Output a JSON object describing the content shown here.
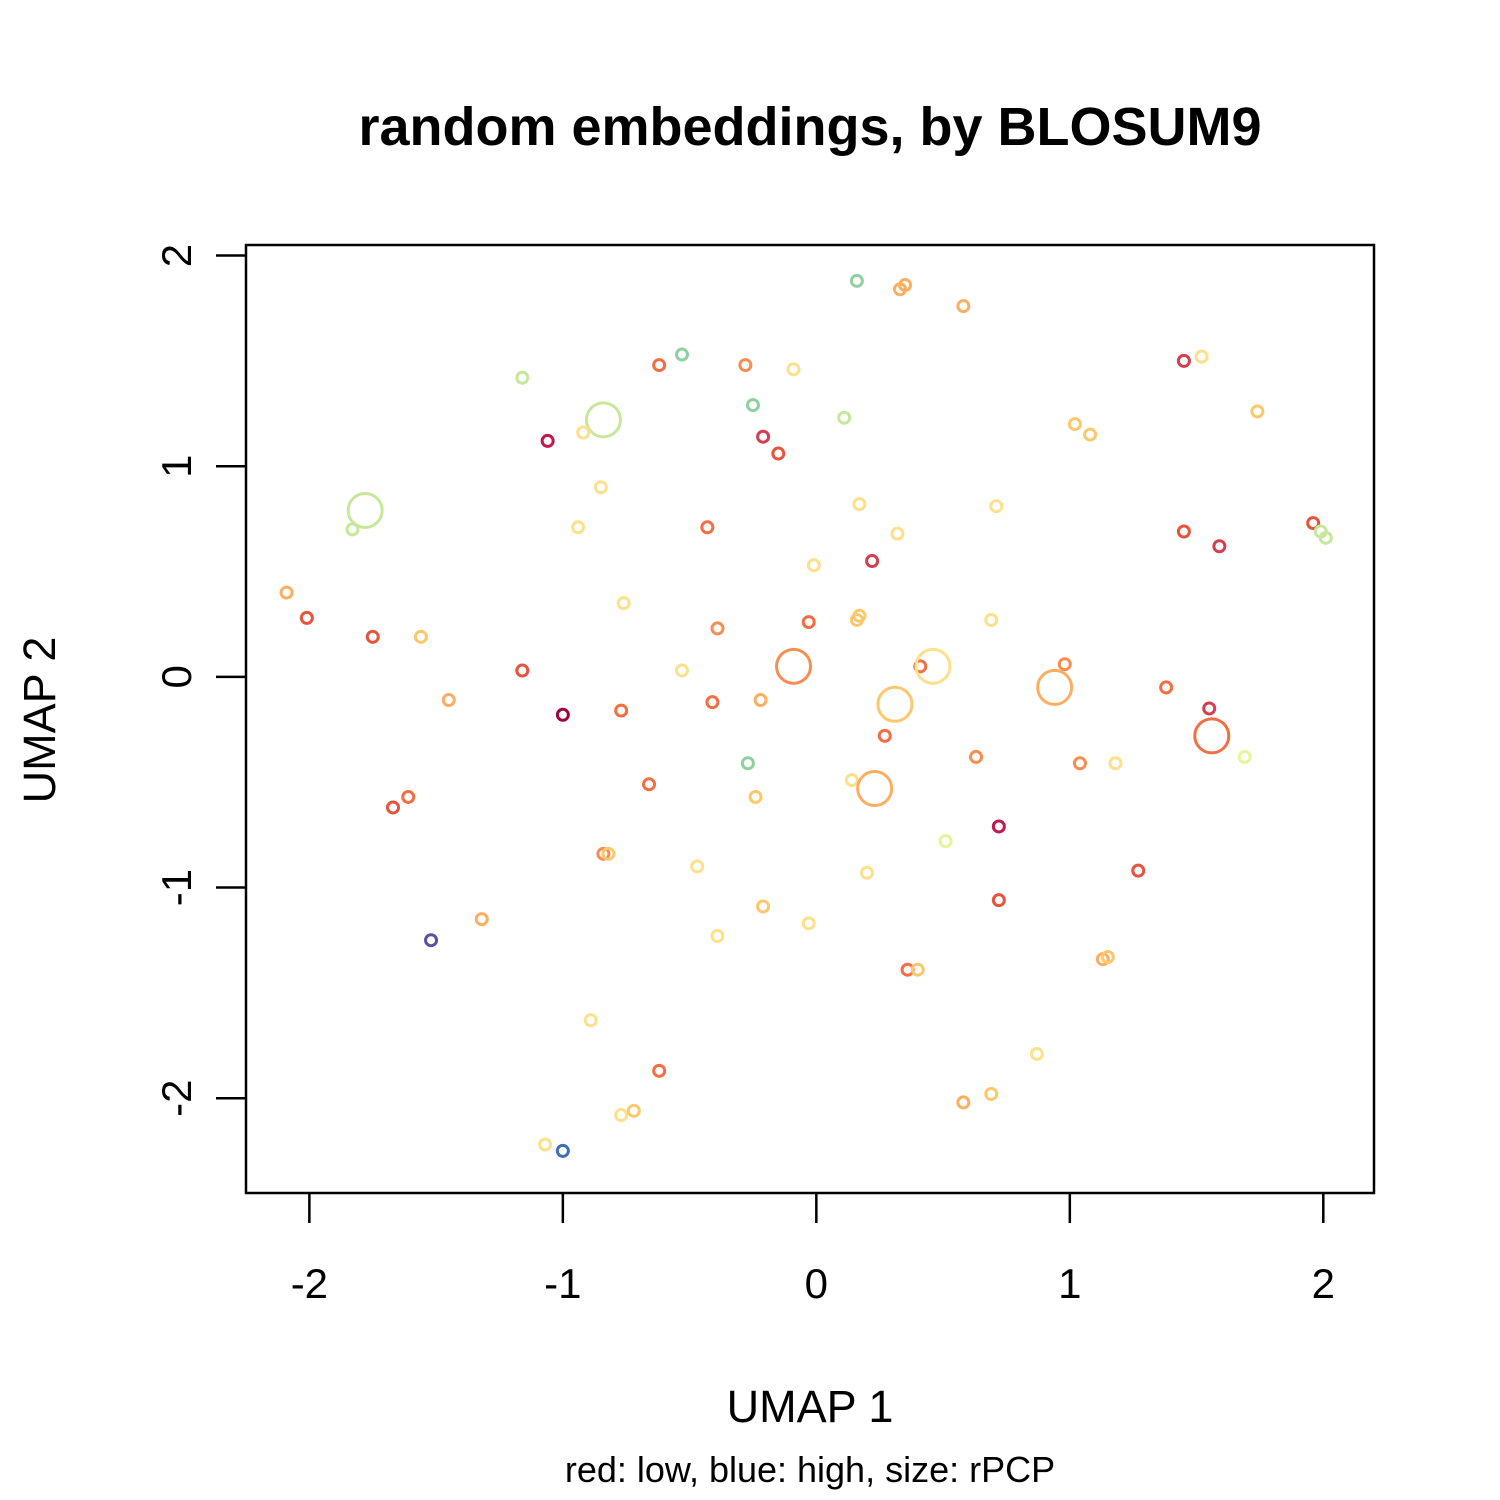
{
  "chart_data": {
    "type": "scatter",
    "title": "random embeddings, by BLOSUM9",
    "xlabel": "UMAP 1",
    "ylabel": "UMAP 2",
    "subtitle": "red: low, blue: high, size: rPCP",
    "xlim": [
      -2.25,
      2.2
    ],
    "ylim": [
      -2.45,
      2.05
    ],
    "xticks": [
      -2,
      -1,
      0,
      1,
      2
    ],
    "yticks": [
      -2,
      -1,
      0,
      1,
      2
    ],
    "points": [
      {
        "x": 0.16,
        "y": 1.88,
        "c": "#8fd19e",
        "s": 1
      },
      {
        "x": 0.33,
        "y": 1.84,
        "c": "#fdae61",
        "s": 1
      },
      {
        "x": 0.35,
        "y": 1.86,
        "c": "#fdae61",
        "s": 1
      },
      {
        "x": 0.58,
        "y": 1.76,
        "c": "#fdae61",
        "s": 1
      },
      {
        "x": -0.53,
        "y": 1.53,
        "c": "#8fd19e",
        "s": 1
      },
      {
        "x": -0.62,
        "y": 1.48,
        "c": "#f46d43",
        "s": 1
      },
      {
        "x": -0.28,
        "y": 1.48,
        "c": "#f88d52",
        "s": 1
      },
      {
        "x": -0.09,
        "y": 1.46,
        "c": "#fee08b",
        "s": 1
      },
      {
        "x": -1.16,
        "y": 1.42,
        "c": "#c7e89b",
        "s": 1
      },
      {
        "x": -0.25,
        "y": 1.29,
        "c": "#8fd19e",
        "s": 1
      },
      {
        "x": -0.84,
        "y": 1.22,
        "c": "#c7e89b",
        "s": 3
      },
      {
        "x": 0.11,
        "y": 1.23,
        "c": "#c7e89b",
        "s": 1
      },
      {
        "x": -0.92,
        "y": 1.16,
        "c": "#fee08b",
        "s": 1
      },
      {
        "x": -1.06,
        "y": 1.12,
        "c": "#c2184c",
        "s": 1
      },
      {
        "x": -0.21,
        "y": 1.14,
        "c": "#d53e4f",
        "s": 1
      },
      {
        "x": -0.15,
        "y": 1.06,
        "c": "#e8533d",
        "s": 1
      },
      {
        "x": 1.45,
        "y": 1.5,
        "c": "#d53e4f",
        "s": 1
      },
      {
        "x": 1.52,
        "y": 1.52,
        "c": "#fee08b",
        "s": 1
      },
      {
        "x": 1.74,
        "y": 1.26,
        "c": "#fdc86c",
        "s": 1
      },
      {
        "x": 1.02,
        "y": 1.2,
        "c": "#fdc86c",
        "s": 1
      },
      {
        "x": 1.08,
        "y": 1.15,
        "c": "#fdc86c",
        "s": 1
      },
      {
        "x": -1.78,
        "y": 0.79,
        "c": "#c7e89b",
        "s": 3
      },
      {
        "x": -1.83,
        "y": 0.7,
        "c": "#c7e89b",
        "s": 1
      },
      {
        "x": -0.85,
        "y": 0.9,
        "c": "#fee08b",
        "s": 1
      },
      {
        "x": -0.94,
        "y": 0.71,
        "c": "#fee08b",
        "s": 1
      },
      {
        "x": -0.43,
        "y": 0.71,
        "c": "#f46d43",
        "s": 1
      },
      {
        "x": 0.17,
        "y": 0.82,
        "c": "#fee08b",
        "s": 1
      },
      {
        "x": 0.71,
        "y": 0.81,
        "c": "#fee08b",
        "s": 1
      },
      {
        "x": 0.32,
        "y": 0.68,
        "c": "#fee08b",
        "s": 1
      },
      {
        "x": -0.01,
        "y": 0.53,
        "c": "#fee08b",
        "s": 1
      },
      {
        "x": 0.22,
        "y": 0.55,
        "c": "#d53e4f",
        "s": 1
      },
      {
        "x": 1.45,
        "y": 0.69,
        "c": "#e8533d",
        "s": 1
      },
      {
        "x": 1.59,
        "y": 0.62,
        "c": "#d53e4f",
        "s": 1
      },
      {
        "x": 1.96,
        "y": 0.73,
        "c": "#e8533d",
        "s": 1
      },
      {
        "x": 1.99,
        "y": 0.69,
        "c": "#c7e89b",
        "s": 1
      },
      {
        "x": 2.01,
        "y": 0.66,
        "c": "#c7e89b",
        "s": 1
      },
      {
        "x": -2.09,
        "y": 0.4,
        "c": "#fdae61",
        "s": 1
      },
      {
        "x": -2.01,
        "y": 0.28,
        "c": "#e8533d",
        "s": 1
      },
      {
        "x": -1.75,
        "y": 0.19,
        "c": "#e8533d",
        "s": 1
      },
      {
        "x": -1.56,
        "y": 0.19,
        "c": "#fdc86c",
        "s": 1
      },
      {
        "x": -0.76,
        "y": 0.35,
        "c": "#fee08b",
        "s": 1
      },
      {
        "x": -0.39,
        "y": 0.23,
        "c": "#f88d52",
        "s": 1
      },
      {
        "x": -0.03,
        "y": 0.26,
        "c": "#f46d43",
        "s": 1
      },
      {
        "x": 0.16,
        "y": 0.27,
        "c": "#fdc86c",
        "s": 1
      },
      {
        "x": 0.17,
        "y": 0.29,
        "c": "#fdc86c",
        "s": 1
      },
      {
        "x": 0.69,
        "y": 0.27,
        "c": "#fee08b",
        "s": 1
      },
      {
        "x": -1.16,
        "y": 0.03,
        "c": "#e8533d",
        "s": 1
      },
      {
        "x": -0.53,
        "y": 0.03,
        "c": "#fee08b",
        "s": 1
      },
      {
        "x": -0.09,
        "y": 0.05,
        "c": "#f88d52",
        "s": 3
      },
      {
        "x": 0.41,
        "y": 0.05,
        "c": "#f46d43",
        "s": 1
      },
      {
        "x": 0.46,
        "y": 0.05,
        "c": "#fee08b",
        "s": 3
      },
      {
        "x": 0.98,
        "y": 0.06,
        "c": "#f88d52",
        "s": 1
      },
      {
        "x": 0.94,
        "y": -0.05,
        "c": "#fdae61",
        "s": 3
      },
      {
        "x": 1.38,
        "y": -0.05,
        "c": "#f46d43",
        "s": 1
      },
      {
        "x": -1.45,
        "y": -0.11,
        "c": "#fdae61",
        "s": 1
      },
      {
        "x": -1.0,
        "y": -0.18,
        "c": "#9e0142",
        "s": 1
      },
      {
        "x": -0.77,
        "y": -0.16,
        "c": "#f46d43",
        "s": 1
      },
      {
        "x": -0.41,
        "y": -0.12,
        "c": "#f46d43",
        "s": 1
      },
      {
        "x": -0.22,
        "y": -0.11,
        "c": "#fdae61",
        "s": 1
      },
      {
        "x": 0.31,
        "y": -0.13,
        "c": "#fdc86c",
        "s": 3
      },
      {
        "x": 0.27,
        "y": -0.28,
        "c": "#f46d43",
        "s": 1
      },
      {
        "x": 1.56,
        "y": -0.28,
        "c": "#f46d43",
        "s": 3
      },
      {
        "x": 1.55,
        "y": -0.15,
        "c": "#d53e4f",
        "s": 1
      },
      {
        "x": -0.27,
        "y": -0.41,
        "c": "#8fd19e",
        "s": 1
      },
      {
        "x": 0.14,
        "y": -0.49,
        "c": "#fee08b",
        "s": 1
      },
      {
        "x": 0.23,
        "y": -0.53,
        "c": "#fdae61",
        "s": 3
      },
      {
        "x": 0.63,
        "y": -0.38,
        "c": "#f88d52",
        "s": 1
      },
      {
        "x": 1.04,
        "y": -0.41,
        "c": "#f88d52",
        "s": 1
      },
      {
        "x": 1.18,
        "y": -0.41,
        "c": "#fee08b",
        "s": 1
      },
      {
        "x": 1.69,
        "y": -0.38,
        "c": "#e6f598",
        "s": 1
      },
      {
        "x": -0.66,
        "y": -0.51,
        "c": "#f46d43",
        "s": 1
      },
      {
        "x": -0.24,
        "y": -0.57,
        "c": "#fdc86c",
        "s": 1
      },
      {
        "x": -1.61,
        "y": -0.57,
        "c": "#f46d43",
        "s": 1
      },
      {
        "x": -1.67,
        "y": -0.62,
        "c": "#e8533d",
        "s": 1
      },
      {
        "x": 0.72,
        "y": -0.71,
        "c": "#c2184c",
        "s": 1
      },
      {
        "x": 0.51,
        "y": -0.78,
        "c": "#e6f598",
        "s": 1
      },
      {
        "x": -0.84,
        "y": -0.84,
        "c": "#f88d52",
        "s": 1
      },
      {
        "x": -0.82,
        "y": -0.84,
        "c": "#fdc86c",
        "s": 1
      },
      {
        "x": -0.47,
        "y": -0.9,
        "c": "#fee08b",
        "s": 1
      },
      {
        "x": 0.2,
        "y": -0.93,
        "c": "#fee08b",
        "s": 1
      },
      {
        "x": 0.72,
        "y": -1.06,
        "c": "#e8533d",
        "s": 1
      },
      {
        "x": 1.27,
        "y": -0.92,
        "c": "#e8533d",
        "s": 1
      },
      {
        "x": -1.32,
        "y": -1.15,
        "c": "#fdae61",
        "s": 1
      },
      {
        "x": -0.21,
        "y": -1.09,
        "c": "#fdc86c",
        "s": 1
      },
      {
        "x": -0.03,
        "y": -1.17,
        "c": "#fee08b",
        "s": 1
      },
      {
        "x": -0.39,
        "y": -1.23,
        "c": "#fee08b",
        "s": 1
      },
      {
        "x": -1.52,
        "y": -1.25,
        "c": "#5e4fa2",
        "s": 1
      },
      {
        "x": 0.36,
        "y": -1.39,
        "c": "#f46d43",
        "s": 1
      },
      {
        "x": 0.4,
        "y": -1.39,
        "c": "#fdc86c",
        "s": 1
      },
      {
        "x": 1.13,
        "y": -1.34,
        "c": "#fdae61",
        "s": 1
      },
      {
        "x": 1.15,
        "y": -1.33,
        "c": "#fdc86c",
        "s": 1
      },
      {
        "x": -0.89,
        "y": -1.63,
        "c": "#fee08b",
        "s": 1
      },
      {
        "x": 0.87,
        "y": -1.79,
        "c": "#fee08b",
        "s": 1
      },
      {
        "x": -0.62,
        "y": -1.87,
        "c": "#f46d43",
        "s": 1
      },
      {
        "x": 0.58,
        "y": -2.02,
        "c": "#fdae61",
        "s": 1
      },
      {
        "x": 0.69,
        "y": -1.98,
        "c": "#fdc86c",
        "s": 1
      },
      {
        "x": -0.77,
        "y": -2.08,
        "c": "#fee08b",
        "s": 1
      },
      {
        "x": -0.72,
        "y": -2.06,
        "c": "#fdc86c",
        "s": 1
      },
      {
        "x": -1.07,
        "y": -2.22,
        "c": "#fee08b",
        "s": 1
      },
      {
        "x": -1.0,
        "y": -2.25,
        "c": "#3f70b2",
        "s": 1
      }
    ]
  }
}
